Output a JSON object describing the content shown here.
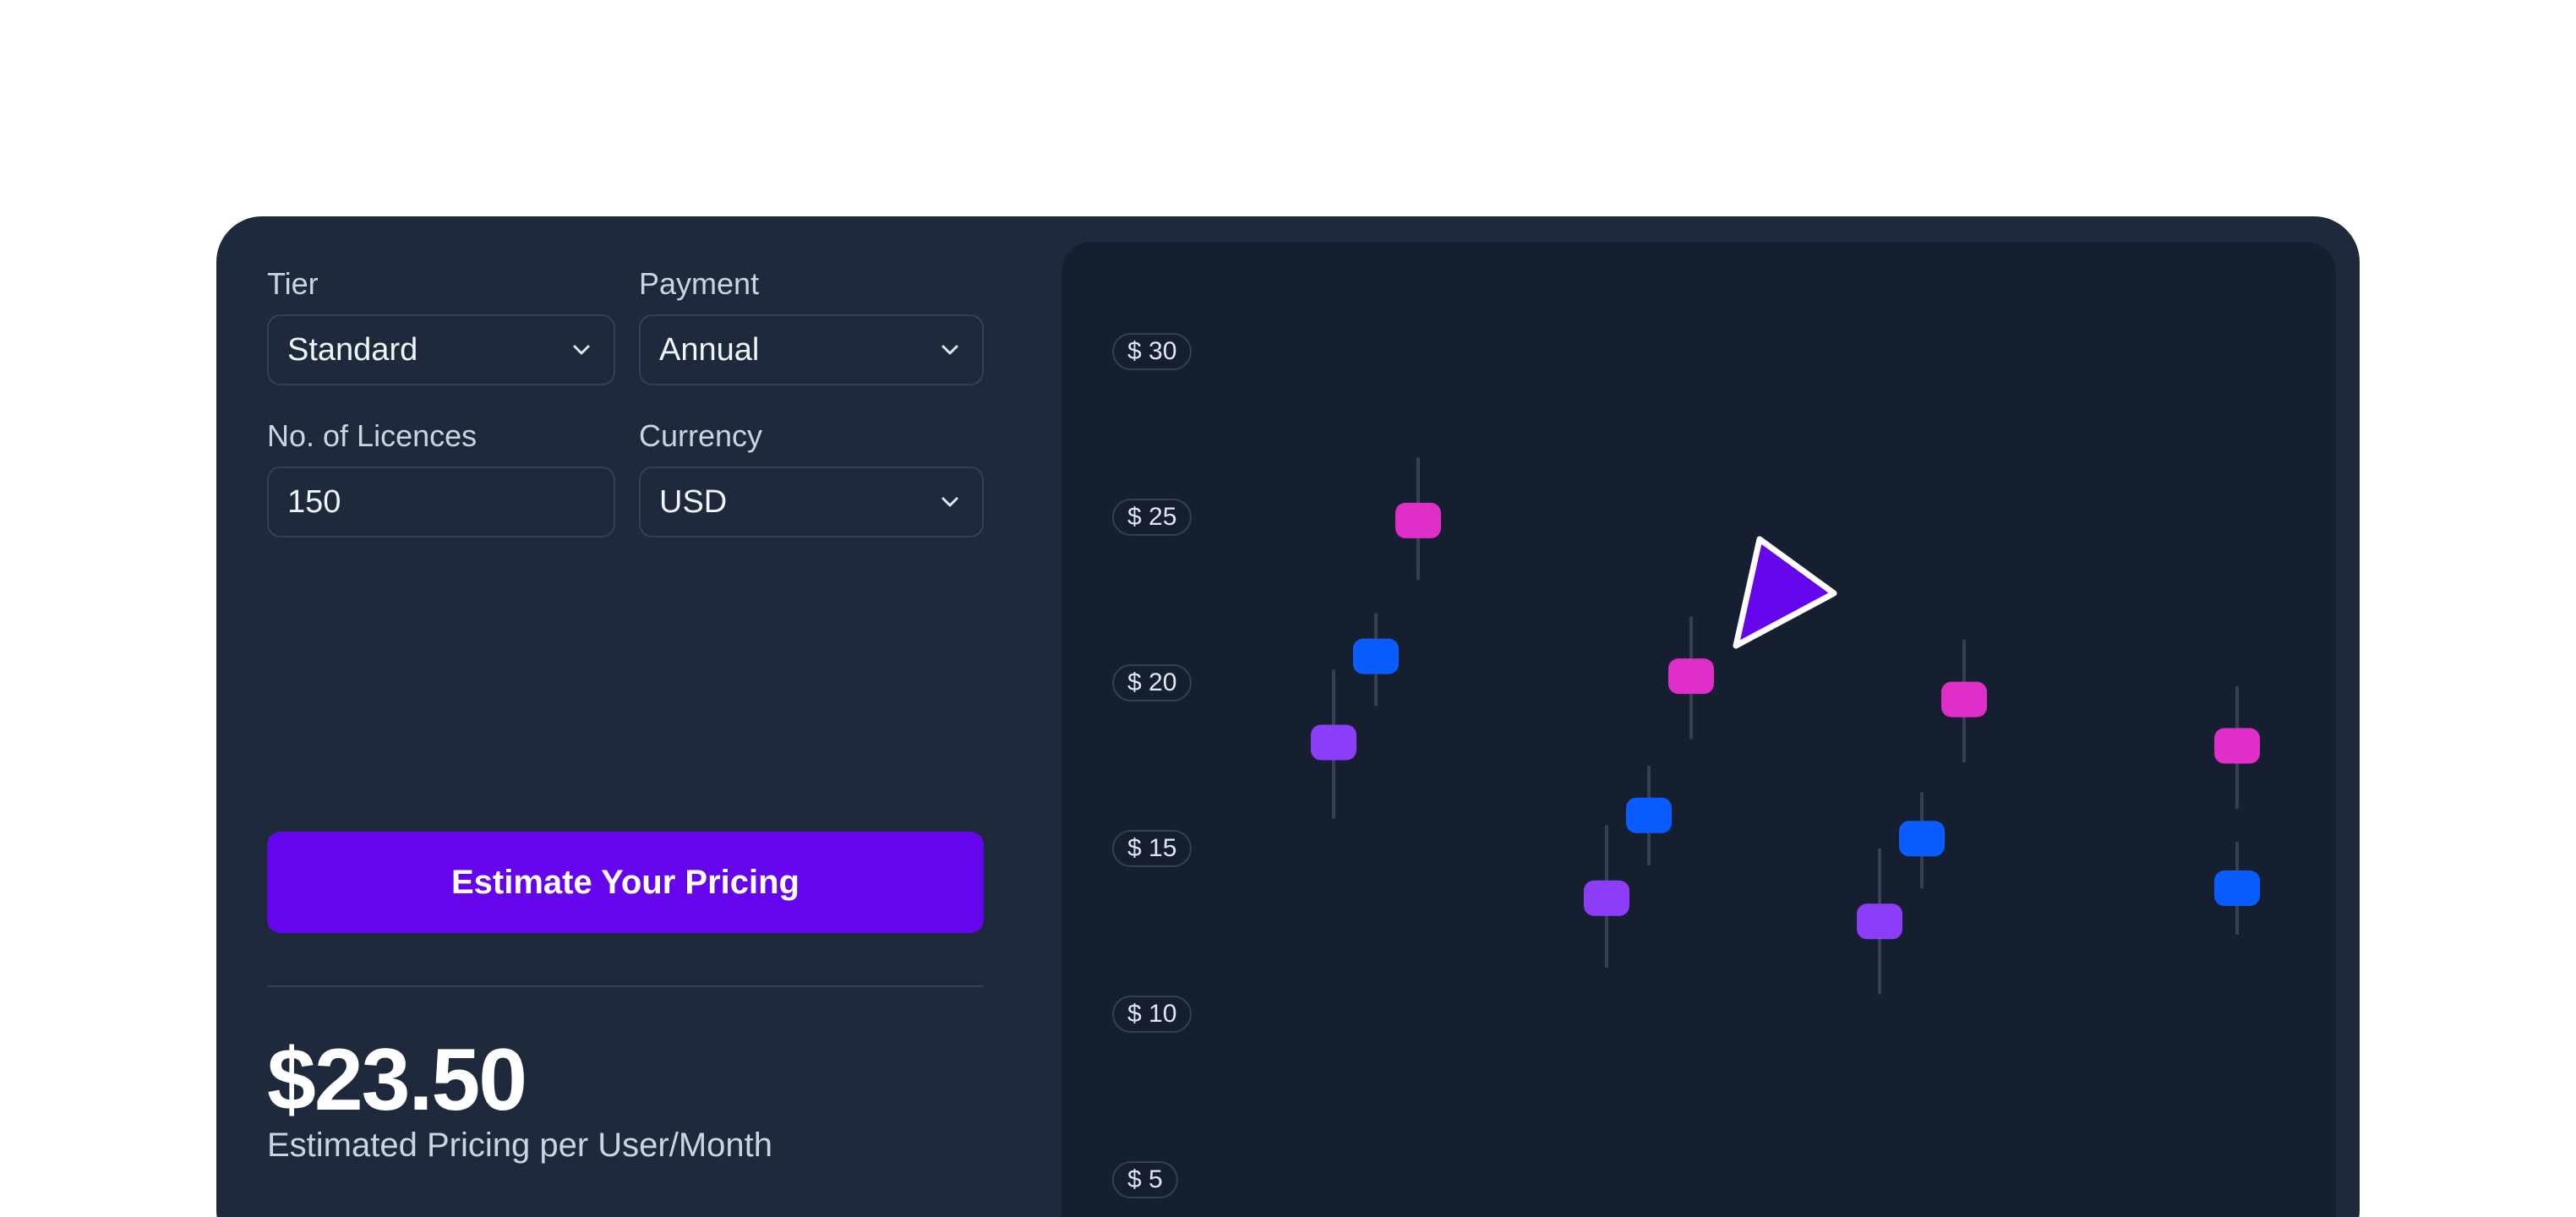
{
  "form": {
    "tier": {
      "label": "Tier",
      "value": "Standard"
    },
    "payment": {
      "label": "Payment",
      "value": "Annual"
    },
    "licences": {
      "label": "No. of Licences",
      "value": "150"
    },
    "currency": {
      "label": "Currency",
      "value": "USD"
    }
  },
  "estimate_button": "Estimate Your Pricing",
  "result": {
    "price": "$23.50",
    "caption": "Estimated Pricing per User/Month"
  },
  "colors": {
    "accent": "#6405ec",
    "series_purple": "#8b3df7",
    "series_blue": "#0a5cff",
    "series_pink": "#e02ec8"
  },
  "chart_data": {
    "type": "scatter",
    "y_tick_labels": [
      "$ 30",
      "$ 25",
      "$ 20",
      "$ 15",
      "$ 10",
      "$ 5"
    ],
    "y_ticks": [
      30,
      25,
      20,
      15,
      10,
      5
    ],
    "ylim": [
      5,
      30
    ],
    "groups": 4,
    "series": [
      {
        "color": "#8b3df7",
        "points": [
          {
            "y": 18.2,
            "low": 15.9,
            "high": 20.4
          },
          {
            "y": 13.5,
            "low": 11.4,
            "high": 15.7
          },
          {
            "y": 12.8,
            "low": 10.6,
            "high": 15.0
          },
          null
        ]
      },
      {
        "color": "#0a5cff",
        "points": [
          {
            "y": 20.8,
            "low": 19.3,
            "high": 22.1
          },
          {
            "y": 16.0,
            "low": 14.5,
            "high": 17.5
          },
          {
            "y": 15.3,
            "low": 13.8,
            "high": 16.7
          },
          {
            "y": 13.8,
            "low": 12.4,
            "high": 15.2
          }
        ]
      },
      {
        "color": "#e02ec8",
        "points": [
          {
            "y": 24.9,
            "low": 23.1,
            "high": 26.8
          },
          {
            "y": 20.2,
            "low": 18.3,
            "high": 22.0
          },
          {
            "y": 19.5,
            "low": 17.6,
            "high": 21.3
          },
          {
            "y": 18.1,
            "low": 16.2,
            "high": 19.9
          }
        ]
      }
    ]
  }
}
